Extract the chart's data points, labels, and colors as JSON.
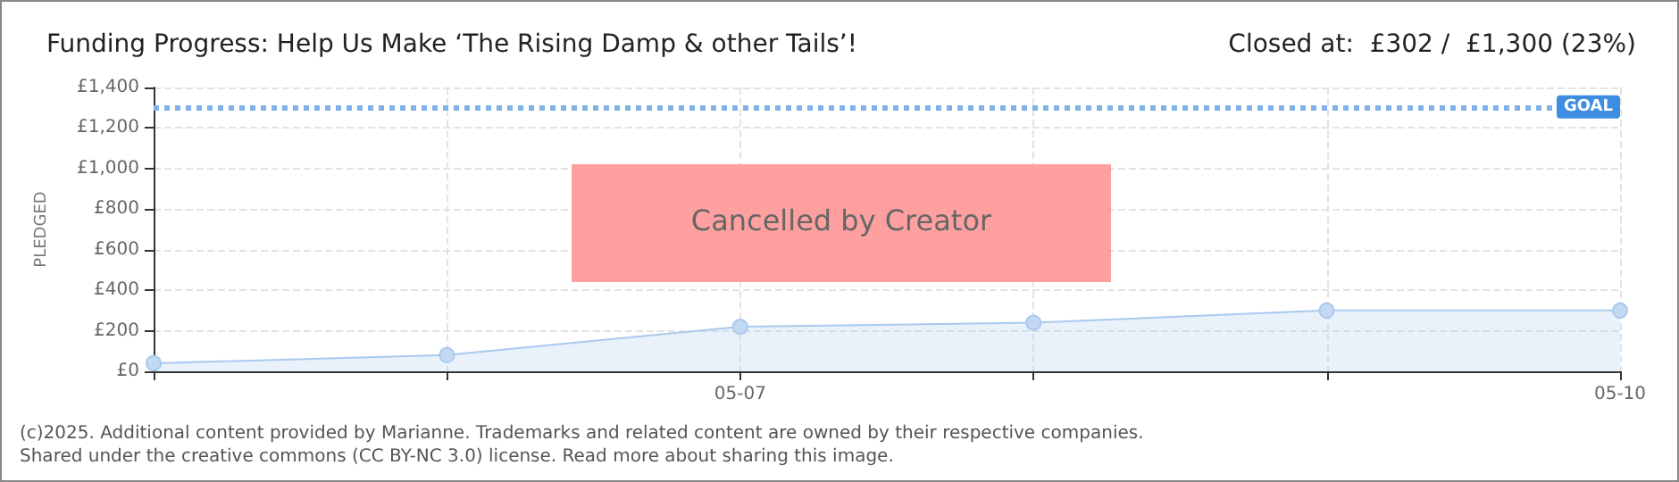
{
  "chart_data": {
    "type": "area",
    "title": "Funding Progress: Help Us Make ‘The Rising Damp & other Tails’!",
    "subtitle": "Closed at:  £302 /  £1,300 (23%)",
    "ylabel": "PLEDGED",
    "categories": [
      null,
      null,
      "05-07",
      null,
      null,
      "05-10"
    ],
    "series": [
      {
        "color": "#a9c9ee",
        "values": [
          40,
          80,
          220,
          240,
          300,
          300
        ]
      }
    ],
    "ylim": [
      0,
      1400
    ],
    "yticks": [
      {
        "value": 0,
        "label": "£0"
      },
      {
        "value": 200,
        "label": "£200"
      },
      {
        "value": 400,
        "label": "£400"
      },
      {
        "value": 600,
        "label": "£600"
      },
      {
        "value": 800,
        "label": "£800"
      },
      {
        "value": 1000,
        "label": "£1,000"
      },
      {
        "value": 1200,
        "label": "£1,200"
      },
      {
        "value": 1400,
        "label": "£1,400"
      }
    ],
    "ref_lines": [
      {
        "axis": "y",
        "value": 1300,
        "label": "GOAL",
        "color": "#7fb2e8",
        "line_style": "dotted"
      }
    ],
    "annotations": [
      "Cancelled by Creator",
      "(c)2025. Additional content provided by Marianne. Trademarks and related content are owned by their respective companies.",
      "Shared under the creative commons (CC BY-NC 3.0) license. Read more about sharing this image."
    ],
    "grid": true,
    "marker": "circle",
    "line_style": "solid"
  }
}
